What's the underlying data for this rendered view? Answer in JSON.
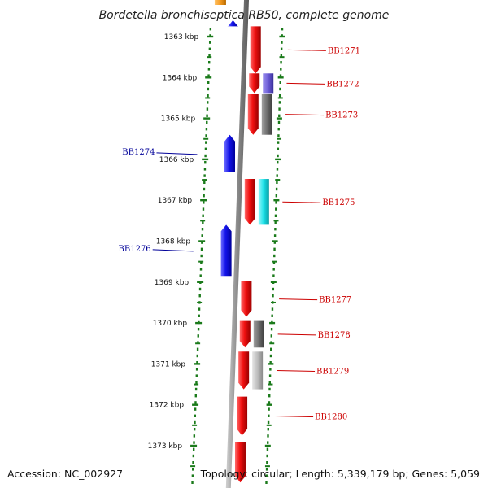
{
  "title": "Bordetella bronchiseptica RB50, complete genome",
  "footer": {
    "accession": "Accession: NC_002927",
    "summary": "Topology: circular; Length: 5,339,179 bp; Genes: 5,059"
  },
  "ticks": [
    {
      "label": "1363 kbp",
      "kbp": 1363
    },
    {
      "label": "1364 kbp",
      "kbp": 1364
    },
    {
      "label": "1365 kbp",
      "kbp": 1365
    },
    {
      "label": "1366 kbp",
      "kbp": 1366
    },
    {
      "label": "1367 kbp",
      "kbp": 1367
    },
    {
      "label": "1368 kbp",
      "kbp": 1368
    },
    {
      "label": "1369 kbp",
      "kbp": 1369
    },
    {
      "label": "1370 kbp",
      "kbp": 1370
    },
    {
      "label": "1371 kbp",
      "kbp": 1371
    },
    {
      "label": "1372 kbp",
      "kbp": 1372
    },
    {
      "label": "1373 kbp",
      "kbp": 1373
    }
  ],
  "colors": {
    "forward": "#e8121a",
    "reverse": "#1515e0",
    "forward_label": "#cc0000",
    "reverse_label": "#000099",
    "backbone": "#888888",
    "dotted_ring": "#1a7a1a",
    "cog_purple": "#6b5bd6",
    "cog_gray_dark": "#6e6e6e",
    "cog_gray_light": "#bdbdbd",
    "cog_cyan": "#18e0e8",
    "cog_orange": "#f59a1e"
  },
  "genes": [
    {
      "name": "BB1271",
      "strand": "+",
      "start_kbp": 1362.75,
      "end_kbp": 1363.9,
      "cog": null
    },
    {
      "name": "BB1272",
      "strand": "+",
      "start_kbp": 1363.9,
      "end_kbp": 1364.38,
      "cog": "cog_purple"
    },
    {
      "name": "BB1273",
      "strand": "+",
      "start_kbp": 1364.4,
      "end_kbp": 1365.4,
      "cog": "cog_gray_dark"
    },
    {
      "name": "BB1274",
      "strand": "-",
      "start_kbp": 1365.4,
      "end_kbp": 1366.32,
      "cog": null
    },
    {
      "name": "BB1275",
      "strand": "+",
      "start_kbp": 1366.48,
      "end_kbp": 1367.6,
      "cog": "cog_cyan"
    },
    {
      "name": "BB1276",
      "strand": "-",
      "start_kbp": 1367.6,
      "end_kbp": 1368.85,
      "cog": null
    },
    {
      "name": "BB1277",
      "strand": "+",
      "start_kbp": 1368.98,
      "end_kbp": 1369.85,
      "cog": null
    },
    {
      "name": "BB1278",
      "strand": "+",
      "start_kbp": 1369.95,
      "end_kbp": 1370.6,
      "cog": "cog_gray_dark"
    },
    {
      "name": "BB1279",
      "strand": "+",
      "start_kbp": 1370.7,
      "end_kbp": 1371.62,
      "cog": "cog_gray_light"
    },
    {
      "name": "BB1280",
      "strand": "+",
      "start_kbp": 1371.8,
      "end_kbp": 1372.75,
      "cog": null
    },
    {
      "name": "",
      "strand": "+",
      "start_kbp": 1372.9,
      "end_kbp": 1373.9,
      "cog": null
    },
    {
      "name": "",
      "strand": "-",
      "start_kbp": 1362.6,
      "end_kbp": 1362.75,
      "cog": "cog_orange"
    }
  ]
}
